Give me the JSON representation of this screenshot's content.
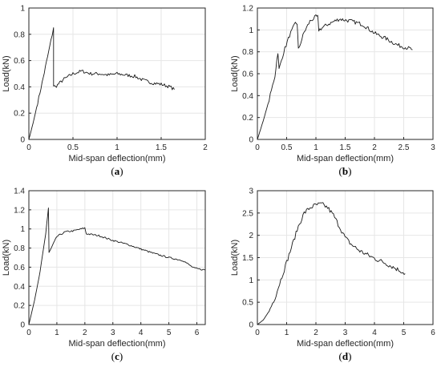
{
  "chart_data": [
    {
      "type": "line",
      "panel_label": "a",
      "xlabel": "Mid-span deflection(mm)",
      "ylabel": "Load(kN)",
      "xlim": [
        0,
        2
      ],
      "ylim": [
        0,
        1
      ],
      "xticks": [
        "0",
        "0.5",
        "1",
        "1.5",
        "2"
      ],
      "yticks": [
        "0",
        "0.2",
        "0.4",
        "0.6",
        "0.8",
        "1"
      ],
      "grid": true,
      "x": [
        0,
        0.05,
        0.1,
        0.15,
        0.2,
        0.25,
        0.28,
        0.28,
        0.3,
        0.35,
        0.4,
        0.45,
        0.5,
        0.55,
        0.6,
        0.65,
        0.7,
        0.8,
        0.9,
        1.0,
        1.1,
        1.2,
        1.3,
        1.4,
        1.5,
        1.6,
        1.65
      ],
      "y": [
        0,
        0.13,
        0.28,
        0.43,
        0.59,
        0.75,
        0.85,
        0.41,
        0.4,
        0.43,
        0.46,
        0.48,
        0.5,
        0.51,
        0.52,
        0.51,
        0.5,
        0.5,
        0.49,
        0.5,
        0.49,
        0.48,
        0.45,
        0.43,
        0.42,
        0.4,
        0.38
      ],
      "noise": 0.025
    },
    {
      "type": "line",
      "panel_label": "b",
      "xlabel": "Mid-span deflection(mm)",
      "ylabel": "Load(kN)",
      "xlim": [
        0,
        3
      ],
      "ylim": [
        0,
        1.2
      ],
      "xticks": [
        "0",
        "0.5",
        "1",
        "1.5",
        "2",
        "2.5",
        "3"
      ],
      "yticks": [
        "0",
        "0.2",
        "0.4",
        "0.6",
        "0.8",
        "1",
        "1.2"
      ],
      "grid": true,
      "x": [
        0,
        0.1,
        0.2,
        0.3,
        0.35,
        0.37,
        0.45,
        0.55,
        0.65,
        0.68,
        0.7,
        0.8,
        0.9,
        1.0,
        1.03,
        1.05,
        1.2,
        1.4,
        1.6,
        1.8,
        2.0,
        2.2,
        2.4,
        2.6,
        2.65
      ],
      "y": [
        0,
        0.17,
        0.36,
        0.58,
        0.8,
        0.64,
        0.8,
        0.95,
        1.06,
        1.06,
        0.82,
        0.98,
        1.08,
        1.12,
        1.12,
        1.0,
        1.05,
        1.1,
        1.08,
        1.05,
        0.97,
        0.92,
        0.86,
        0.83,
        0.82
      ],
      "noise": 0.03
    },
    {
      "type": "line",
      "panel_label": "c",
      "xlabel": "Mid-span deflection(mm)",
      "ylabel": "Load(kN)",
      "xlim": [
        0,
        6.3
      ],
      "ylim": [
        0,
        1.4
      ],
      "xticks": [
        "0",
        "1",
        "2",
        "3",
        "4",
        "5",
        "6"
      ],
      "yticks": [
        "0",
        "0.2",
        "0.4",
        "0.6",
        "0.8",
        "1",
        "1.2",
        "1.4"
      ],
      "grid": true,
      "x": [
        0,
        0.2,
        0.4,
        0.6,
        0.7,
        0.72,
        1.0,
        1.3,
        1.6,
        2.0,
        2.05,
        2.5,
        3.0,
        3.5,
        4.0,
        4.5,
        5.0,
        5.5,
        5.7,
        5.9,
        6.1,
        6.3
      ],
      "y": [
        0,
        0.25,
        0.55,
        0.95,
        1.22,
        0.75,
        0.92,
        0.97,
        0.98,
        1.01,
        0.95,
        0.93,
        0.88,
        0.84,
        0.79,
        0.74,
        0.7,
        0.67,
        0.63,
        0.59,
        0.58,
        0.57
      ],
      "noise": 0.012
    },
    {
      "type": "line",
      "panel_label": "d",
      "xlabel": "Mid-span deflection(mm)",
      "ylabel": "Load(kN)",
      "xlim": [
        0,
        6
      ],
      "ylim": [
        0,
        3
      ],
      "xticks": [
        "0",
        "1",
        "2",
        "3",
        "4",
        "5",
        "6"
      ],
      "yticks": [
        "0",
        "0.5",
        "1",
        "1.5",
        "2",
        "2.5",
        "3"
      ],
      "grid": true,
      "x": [
        0,
        0.2,
        0.4,
        0.6,
        0.8,
        1.0,
        1.2,
        1.4,
        1.6,
        1.8,
        2.0,
        2.2,
        2.4,
        2.6,
        2.8,
        3.0,
        3.2,
        3.5,
        3.8,
        4.0,
        4.3,
        4.6,
        4.9,
        5.05
      ],
      "y": [
        0,
        0.1,
        0.3,
        0.6,
        1.0,
        1.4,
        1.8,
        2.2,
        2.5,
        2.62,
        2.68,
        2.7,
        2.62,
        2.45,
        2.2,
        1.95,
        1.8,
        1.65,
        1.55,
        1.48,
        1.4,
        1.3,
        1.2,
        1.14
      ],
      "noise": 0.035
    }
  ]
}
